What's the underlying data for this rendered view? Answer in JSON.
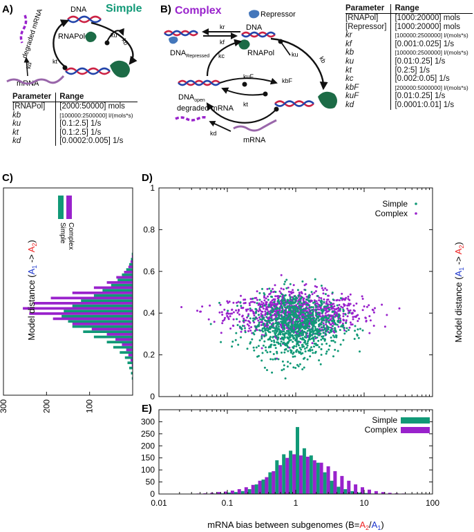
{
  "panel_letters": {
    "a": "A)",
    "b": "B)",
    "c": "C)",
    "d": "D)",
    "e": "E)"
  },
  "schematic_a": {
    "title": "Simple",
    "labels": {
      "dna": "DNA",
      "rnapol": "RNAPol",
      "degraded": "degraded mRNA",
      "mrna": "mRNA",
      "ku": "ku",
      "kb": "kb",
      "kt": "kt",
      "kd": "kd"
    },
    "table": {
      "headers": [
        "Parameter",
        "Range"
      ],
      "rows": [
        {
          "param": "[RNAPol]",
          "range": "[2000:50000] mols",
          "small": false
        },
        {
          "param": "kb",
          "range": "[100000:2500000] l/(mols*s)",
          "small": true
        },
        {
          "param": "ku",
          "range": "[0.1:2.5] 1/s",
          "small": false
        },
        {
          "param": "kt",
          "range": "[0.1:2.5] 1/s",
          "small": false
        },
        {
          "param": "kd",
          "range": "[0.0002:0.005] 1/s",
          "small": false
        }
      ]
    }
  },
  "schematic_b": {
    "title": "Complex",
    "labels": {
      "repressor": "Repressor",
      "dna": "DNA",
      "rnapol": "RNAPol",
      "dna_repressed": "DNA",
      "dna_repressed_sub": "Repressed",
      "dna_open": "DNA",
      "dna_open_sub": "open",
      "degraded": "degraded mRNA",
      "mrna": "mRNA",
      "kr": "kr",
      "kf": "kf",
      "kc": "kc",
      "ku": "ku",
      "kb": "kb",
      "kt": "kt",
      "kuF": "kuF",
      "kbF": "kbF",
      "kd": "kd"
    },
    "table": {
      "headers": [
        "Parameter",
        "Range"
      ],
      "rows": [
        {
          "param": "[RNAPol]",
          "range": "[1000:20000] mols",
          "small": false
        },
        {
          "param": "[Repressor]",
          "range": "[1000:20000] mols",
          "small": false
        },
        {
          "param": "kr",
          "range": "[100000:2500000] l/(mols*s)",
          "small": true
        },
        {
          "param": "kf",
          "range": "[0.001:0.025] 1/s",
          "small": false
        },
        {
          "param": "kb",
          "range": "[100000:2500000] l/(mols*s)",
          "small": true
        },
        {
          "param": "ku",
          "range": "[0.01:0.25] 1/s",
          "small": false
        },
        {
          "param": "kt",
          "range": "[0.2:5] 1/s",
          "small": false
        },
        {
          "param": "kc",
          "range": "[0.002:0.05] 1/s",
          "small": false
        },
        {
          "param": "kbF",
          "range": "[200000:5000000] l/(mols*s)",
          "small": true
        },
        {
          "param": "kuF",
          "range": "[0.01:0.25] 1/s",
          "small": false
        },
        {
          "param": "kd",
          "range": "[0.0001:0.01] 1/s",
          "small": false
        }
      ]
    }
  },
  "colors": {
    "simple": "#119977",
    "complex": "#9922cc",
    "a1": "#1a33cc",
    "a2": "#ee2222"
  },
  "chart_data": [
    {
      "id": "C",
      "type": "bar",
      "orientation": "horizontal",
      "ylabel_parts": [
        "Model distance (",
        "A",
        "1",
        " -> ",
        "A",
        "2",
        ")"
      ],
      "xlim": [
        300,
        0
      ],
      "xticks": [
        300,
        200,
        100
      ],
      "ylim": [
        0,
        1
      ],
      "bin_width": 0.025,
      "legend": [
        "Simple",
        "Complex"
      ],
      "series": [
        {
          "name": "Simple",
          "bin_centers": [
            0.0875,
            0.1125,
            0.1375,
            0.1625,
            0.1875,
            0.2125,
            0.2375,
            0.2625,
            0.2875,
            0.3125,
            0.3375,
            0.3625,
            0.3875,
            0.4125,
            0.4375,
            0.4625,
            0.4875,
            0.5125,
            0.5375,
            0.5625,
            0.5875,
            0.6125,
            0.6375,
            0.6625,
            0.6875
          ],
          "values": [
            2,
            4,
            8,
            12,
            18,
            30,
            45,
            60,
            90,
            115,
            140,
            150,
            165,
            160,
            140,
            120,
            90,
            70,
            50,
            35,
            25,
            15,
            8,
            4,
            2
          ]
        },
        {
          "name": "Complex",
          "bin_centers": [
            0.1375,
            0.1625,
            0.1875,
            0.2125,
            0.2375,
            0.2625,
            0.2875,
            0.3125,
            0.3375,
            0.3625,
            0.3875,
            0.4125,
            0.4375,
            0.4625,
            0.4875,
            0.5125,
            0.5375,
            0.5625,
            0.5875,
            0.6125,
            0.6375,
            0.6625
          ],
          "values": [
            2,
            5,
            10,
            15,
            25,
            40,
            60,
            95,
            140,
            185,
            240,
            255,
            230,
            190,
            140,
            90,
            60,
            38,
            20,
            10,
            5,
            2
          ]
        }
      ]
    },
    {
      "id": "D",
      "type": "scatter",
      "xscale": "log",
      "xlim": [
        0.01,
        100
      ],
      "ylim": [
        0,
        1
      ],
      "yticks": [
        0,
        0.2,
        0.4,
        0.6,
        0.8,
        1
      ],
      "ytick_labels": [
        "0",
        "0.2",
        "0.4",
        "0.6",
        "0.8",
        "1"
      ],
      "ylabel_parts": [
        "Model distance (",
        "A",
        "1",
        " -> ",
        "A",
        "2",
        ")"
      ],
      "legend": [
        "Simple",
        "Complex"
      ],
      "series": [
        {
          "name": "Simple",
          "n": 1000,
          "x_log10_mean": 0.0,
          "x_log10_sd": 0.33,
          "y_mean": 0.34,
          "y_sd": 0.085
        },
        {
          "name": "Complex",
          "n": 1000,
          "x_log10_mean": 0.0,
          "x_log10_sd": 0.48,
          "y_mean": 0.4,
          "y_sd": 0.06
        }
      ]
    },
    {
      "id": "E",
      "type": "bar",
      "xscale": "log",
      "xlim": [
        0.01,
        100
      ],
      "xticks": [
        0.01,
        0.1,
        1,
        10,
        100
      ],
      "xtick_labels": [
        "0.01",
        "0.1",
        "1",
        "10",
        "100"
      ],
      "ylim": [
        0,
        350
      ],
      "yticks": [
        0,
        50,
        100,
        150,
        200,
        250,
        300
      ],
      "ytick_labels": [
        "0",
        "50",
        "100",
        "150",
        "200",
        "250",
        "300"
      ],
      "xlabel_parts": [
        "mRNA bias between subgenomes (B=",
        "A",
        "2",
        "/",
        "A",
        "1",
        ")"
      ],
      "bin_log_width": 0.1,
      "legend": [
        "Simple",
        "Complex"
      ],
      "series": [
        {
          "name": "Simple",
          "bin_left_log10": [
            -1.3,
            -1.2,
            -1.1,
            -1.0,
            -0.9,
            -0.8,
            -0.7,
            -0.6,
            -0.5,
            -0.4,
            -0.3,
            -0.2,
            -0.1,
            0.0,
            0.1,
            0.2,
            0.3,
            0.4,
            0.5,
            0.6,
            0.7,
            0.8,
            0.9,
            1.0,
            1.1
          ],
          "values": [
            1,
            2,
            3,
            6,
            8,
            12,
            20,
            40,
            60,
            90,
            140,
            165,
            180,
            278,
            190,
            160,
            130,
            90,
            55,
            30,
            20,
            12,
            6,
            4,
            2
          ]
        },
        {
          "name": "Complex",
          "bin_left_log10": [
            -1.7,
            -1.6,
            -1.5,
            -1.4,
            -1.3,
            -1.2,
            -1.1,
            -1.0,
            -0.9,
            -0.8,
            -0.7,
            -0.6,
            -0.5,
            -0.4,
            -0.3,
            -0.2,
            -0.1,
            0.0,
            0.1,
            0.2,
            0.3,
            0.4,
            0.5,
            0.6,
            0.7,
            0.8,
            0.9,
            1.0,
            1.1,
            1.2,
            1.3,
            1.4,
            1.5
          ],
          "values": [
            1,
            1,
            2,
            3,
            5,
            8,
            10,
            14,
            20,
            28,
            38,
            55,
            70,
            95,
            120,
            150,
            165,
            160,
            155,
            140,
            130,
            115,
            95,
            75,
            55,
            40,
            28,
            18,
            12,
            8,
            5,
            3,
            2
          ]
        }
      ]
    }
  ]
}
